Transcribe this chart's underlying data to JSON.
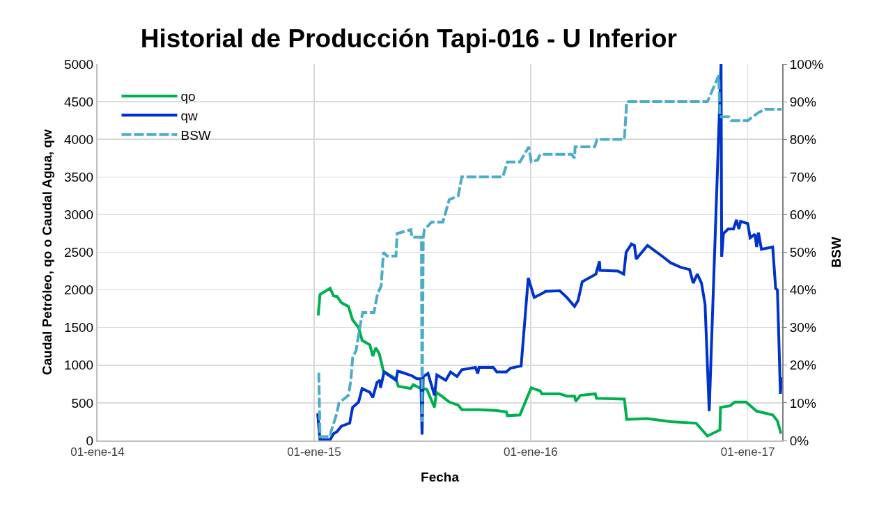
{
  "chart_data": {
    "type": "line",
    "title": "Historial de Producción Tapi-016 - U Inferior",
    "xlabel": "Fecha",
    "ylabel": "Caudal Petróleo, qo o Caudal Agua, qw",
    "y2label": "BSW",
    "xlim": [
      "2014-01-01",
      "2017-02-28"
    ],
    "xticks": [
      {
        "value": "2014-01-01",
        "label": "01-ene-14"
      },
      {
        "value": "2015-01-01",
        "label": "01-ene-15"
      },
      {
        "value": "2016-01-01",
        "label": "01-ene-16"
      },
      {
        "value": "2017-01-01",
        "label": "01-ene-17"
      }
    ],
    "ylim": [
      0,
      5000
    ],
    "yticks": [
      0,
      500,
      1000,
      1500,
      2000,
      2500,
      3000,
      3500,
      4000,
      4500,
      5000
    ],
    "y2lim": [
      0,
      100
    ],
    "y2ticks": [
      {
        "value": 0,
        "label": "0%"
      },
      {
        "value": 10,
        "label": "10%"
      },
      {
        "value": 20,
        "label": "20%"
      },
      {
        "value": 30,
        "label": "30%"
      },
      {
        "value": 40,
        "label": "40%"
      },
      {
        "value": 50,
        "label": "50%"
      },
      {
        "value": 60,
        "label": "60%"
      },
      {
        "value": 70,
        "label": "70%"
      },
      {
        "value": 80,
        "label": "80%"
      },
      {
        "value": 90,
        "label": "90%"
      },
      {
        "value": 100,
        "label": "100%"
      }
    ],
    "grid": true,
    "legend": "top left",
    "marker": "none",
    "series": [
      {
        "name": "qo",
        "color": "#00b050",
        "line_style": "solid",
        "x": [
          "2015-01-08",
          "2015-01-11",
          "2015-01-28",
          "2015-02-03",
          "2015-02-09",
          "2015-02-16",
          "2015-02-28",
          "2015-03-07",
          "2015-03-17",
          "2015-03-23",
          "2015-04-05",
          "2015-04-10",
          "2015-04-15",
          "2015-04-21",
          "2015-04-28",
          "2015-05-19",
          "2015-05-23",
          "2015-06-13",
          "2015-06-17",
          "2015-06-30",
          "2015-07-10",
          "2015-07-23",
          "2015-07-26",
          "2015-08-04",
          "2015-08-17",
          "2015-09-01",
          "2015-09-07",
          "2015-10-04",
          "2015-11-02",
          "2015-11-21",
          "2015-11-23",
          "2015-12-14",
          "2016-01-02",
          "2016-01-17",
          "2016-01-20",
          "2016-02-19",
          "2016-03-02",
          "2016-03-15",
          "2016-03-17",
          "2016-03-25",
          "2016-04-19",
          "2016-04-21",
          "2016-06-07",
          "2016-06-11",
          "2016-07-15",
          "2016-08-25",
          "2016-10-06",
          "2016-10-25",
          "2016-11-15",
          "2016-11-16",
          "2016-12-02",
          "2016-12-10",
          "2016-12-29",
          "2017-01-16",
          "2017-02-12",
          "2017-02-20",
          "2017-02-26"
        ],
        "values": [
          1660,
          1940,
          2020,
          1920,
          1910,
          1830,
          1780,
          1600,
          1500,
          1330,
          1270,
          1120,
          1230,
          1150,
          920,
          820,
          720,
          690,
          740,
          690,
          680,
          440,
          640,
          590,
          510,
          470,
          410,
          410,
          400,
          380,
          330,
          340,
          700,
          660,
          620,
          620,
          590,
          590,
          520,
          600,
          620,
          560,
          550,
          280,
          290,
          250,
          230,
          60,
          140,
          440,
          460,
          510,
          510,
          390,
          340,
          260,
          90
        ]
      },
      {
        "name": "qw",
        "color": "#0033cc",
        "line_style": "solid",
        "x": [
          "2015-01-07",
          "2015-01-11",
          "2015-01-28",
          "2015-02-03",
          "2015-02-09",
          "2015-02-16",
          "2015-03-02",
          "2015-03-07",
          "2015-03-17",
          "2015-03-23",
          "2015-04-05",
          "2015-04-10",
          "2015-04-17",
          "2015-04-22",
          "2015-04-23",
          "2015-04-29",
          "2015-05-19",
          "2015-05-22",
          "2015-05-27",
          "2015-06-15",
          "2015-06-23",
          "2015-06-30",
          "2015-07-02",
          "2015-07-04",
          "2015-07-12",
          "2015-07-23",
          "2015-07-27",
          "2015-08-11",
          "2015-08-19",
          "2015-08-30",
          "2015-09-07",
          "2015-09-30",
          "2015-10-04",
          "2015-10-06",
          "2015-10-30",
          "2015-11-05",
          "2015-11-21",
          "2015-11-28",
          "2015-12-16",
          "2015-12-28",
          "2016-01-07",
          "2016-01-22",
          "2016-01-26",
          "2016-02-19",
          "2016-03-02",
          "2016-03-15",
          "2016-03-21",
          "2016-03-28",
          "2016-04-20",
          "2016-04-26",
          "2016-04-27",
          "2016-05-27",
          "2016-06-06",
          "2016-06-10",
          "2016-06-19",
          "2016-06-24",
          "2016-06-27",
          "2016-07-16",
          "2016-08-11",
          "2016-08-24",
          "2016-09-10",
          "2016-09-25",
          "2016-10-01",
          "2016-10-08",
          "2016-10-15",
          "2016-10-21",
          "2016-10-28",
          "2016-11-17",
          "2016-11-18",
          "2016-11-21",
          "2016-11-29",
          "2016-12-08",
          "2016-12-13",
          "2016-12-17",
          "2016-12-20",
          "2017-01-01",
          "2017-01-05",
          "2017-01-13",
          "2017-01-16",
          "2017-01-19",
          "2017-01-24",
          "2017-02-12",
          "2017-02-17",
          "2017-02-20",
          "2017-02-25",
          "2017-02-27"
        ],
        "values": [
          360,
          10,
          10,
          90,
          120,
          190,
          230,
          440,
          510,
          690,
          640,
          570,
          770,
          800,
          700,
          910,
          800,
          920,
          910,
          860,
          820,
          820,
          80,
          850,
          890,
          600,
          870,
          800,
          910,
          850,
          940,
          970,
          890,
          970,
          970,
          910,
          910,
          960,
          990,
          2160,
          1900,
          1960,
          1980,
          1990,
          1900,
          1780,
          1860,
          2110,
          2210,
          2380,
          2260,
          2250,
          2210,
          2500,
          2610,
          2590,
          2410,
          2590,
          2440,
          2360,
          2300,
          2270,
          2090,
          2210,
          2090,
          1810,
          390,
          5000,
          2440,
          2750,
          2810,
          2810,
          2930,
          2810,
          2910,
          2880,
          2690,
          2740,
          2570,
          2760,
          2540,
          2570,
          2020,
          2000,
          620,
          840
        ]
      },
      {
        "name": "BSW",
        "color": "#4bacc6",
        "line_style": "dashed",
        "axis": "y2",
        "x": [
          "2015-01-09",
          "2015-01-11",
          "2015-01-28",
          "2015-01-30",
          "2015-02-08",
          "2015-02-12",
          "2015-02-28",
          "2015-03-04",
          "2015-03-07",
          "2015-03-13",
          "2015-03-19",
          "2015-03-24",
          "2015-04-12",
          "2015-04-18",
          "2015-04-24",
          "2015-04-28",
          "2015-05-04",
          "2015-05-19",
          "2015-05-21",
          "2015-06-13",
          "2015-06-15",
          "2015-07-01",
          "2015-07-02",
          "2015-07-04",
          "2015-07-06",
          "2015-07-12",
          "2015-07-18",
          "2015-08-06",
          "2015-08-17",
          "2015-09-01",
          "2015-09-07",
          "2015-11-15",
          "2015-11-23",
          "2015-12-14",
          "2015-12-29",
          "2016-01-02",
          "2016-01-13",
          "2016-01-17",
          "2016-03-10",
          "2016-03-15",
          "2016-03-16",
          "2016-04-18",
          "2016-04-22",
          "2016-06-07",
          "2016-06-11",
          "2016-10-25",
          "2016-11-05",
          "2016-11-13",
          "2016-11-15",
          "2016-11-30",
          "2016-12-04",
          "2017-01-01",
          "2017-01-18",
          "2017-01-30",
          "2017-02-27"
        ],
        "values": [
          18,
          1,
          1,
          2.6,
          7,
          10,
          12,
          16,
          22,
          24,
          30,
          34,
          34,
          39,
          41,
          50,
          49,
          49,
          55,
          56,
          54,
          54,
          5,
          54,
          56,
          57,
          58,
          58,
          64,
          65,
          70,
          70,
          74,
          74,
          78,
          74,
          74.5,
          76,
          76,
          75,
          78,
          78,
          80,
          80,
          90,
          90,
          94,
          97,
          86,
          86,
          85,
          85,
          87,
          88,
          88
        ]
      }
    ]
  }
}
